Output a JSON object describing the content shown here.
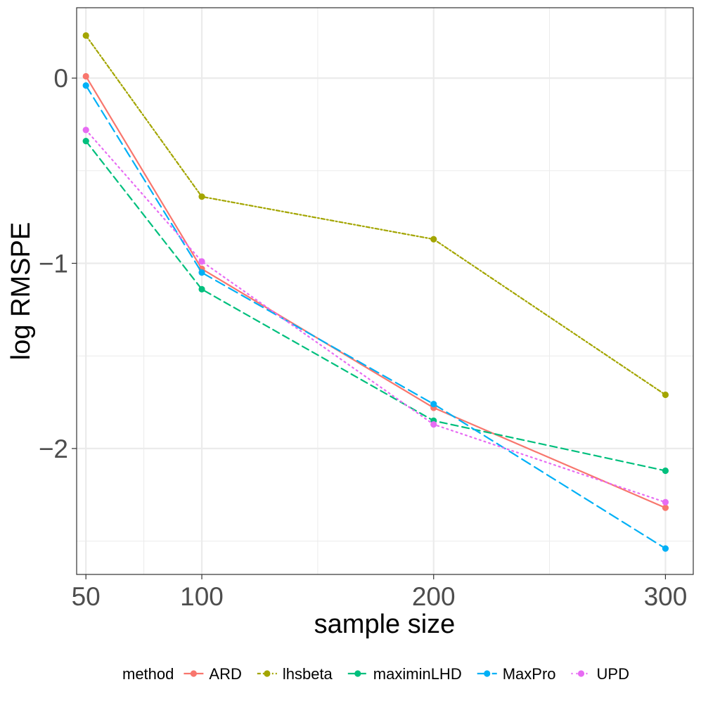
{
  "chart_data": {
    "type": "line",
    "title": "",
    "xlabel": "sample size",
    "ylabel": "log RMSPE",
    "x": [
      50,
      100,
      200,
      300
    ],
    "xticks": [
      50,
      100,
      200,
      300
    ],
    "xtick_labels": [
      "50",
      "100",
      "200",
      "300"
    ],
    "xlim": [
      46,
      312
    ],
    "yticks": [
      0,
      -1,
      -2
    ],
    "ytick_labels": [
      "0",
      "−1",
      "−2"
    ],
    "ylim": [
      -2.68,
      0.38
    ],
    "grid": true,
    "legend_title": "method",
    "legend_position": "bottom",
    "series": [
      {
        "name": "ARD",
        "values": [
          0.01,
          -1.03,
          -1.78,
          -2.32
        ],
        "color": "#F8766D",
        "dash": "solid"
      },
      {
        "name": "lhsbeta",
        "values": [
          0.23,
          -0.64,
          -0.87,
          -1.71
        ],
        "color": "#A3A500",
        "dash": "dotted-dash"
      },
      {
        "name": "maximinLHD",
        "values": [
          -0.34,
          -1.14,
          -1.85,
          -2.12
        ],
        "color": "#00BF7D",
        "dash": "dashed"
      },
      {
        "name": "MaxPro",
        "values": [
          -0.04,
          -1.05,
          -1.76,
          -2.54
        ],
        "color": "#00B0F6",
        "dash": "long-dash"
      },
      {
        "name": "UPD",
        "values": [
          -0.28,
          -0.99,
          -1.87,
          -2.29
        ],
        "color": "#E76BF3",
        "dash": "dotted"
      }
    ]
  }
}
